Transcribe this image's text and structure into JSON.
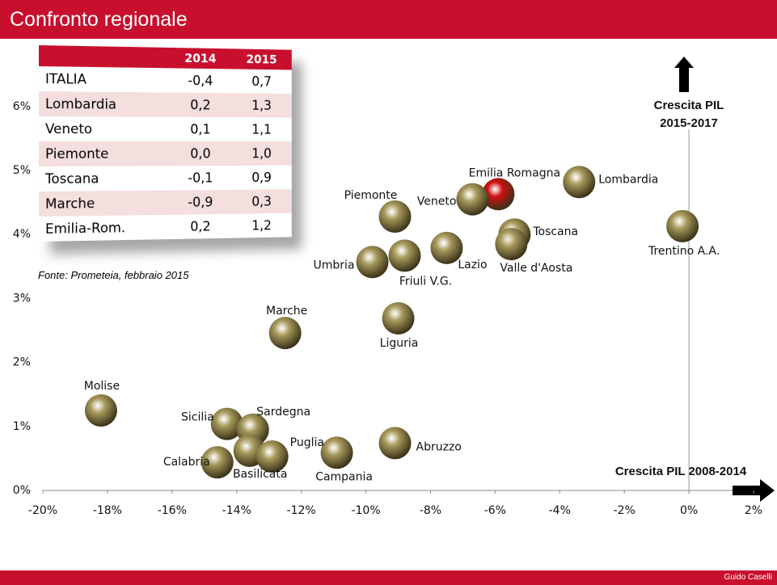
{
  "header": {
    "title": "Confronto regionale"
  },
  "footer": {
    "author": "Guido Caselli"
  },
  "table": {
    "columns": [
      "2014",
      "2015"
    ],
    "rows": [
      [
        "ITALIA",
        "-0,4",
        "0,7"
      ],
      [
        "Lombardia",
        "0,2",
        "1,3"
      ],
      [
        "Veneto",
        "0,1",
        "1,1"
      ],
      [
        "Piemonte",
        "0,0",
        "1,0"
      ],
      [
        "Toscana",
        "-0,1",
        "0,9"
      ],
      [
        "Marche",
        "-0,9",
        "0,3"
      ],
      [
        "Emilia-Rom.",
        "0,2",
        "1,2"
      ]
    ],
    "source": "Fonte: Prometeia, febbraio 2015"
  },
  "chart_data": {
    "type": "scatter",
    "x_axis_label": "Crescita PIL 2008-2014",
    "y_axis_label": [
      "Crescita PIL",
      "2015-2017"
    ],
    "labels": [
      "Lombardia",
      "Emilia Romagna",
      "Veneto",
      "Toscana",
      "Valle d'Aosta",
      "Trentino A.A.",
      "Piemonte",
      "Lazio",
      "Friuli V.G.",
      "Umbria",
      "Marche",
      "Liguria",
      "Molise",
      "Sicilia",
      "Sardegna",
      "Basilicata",
      "Puglia",
      "Calabria",
      "Campania",
      "Abruzzo"
    ],
    "x": [
      -3.4,
      -5.9,
      -6.7,
      -5.4,
      -5.5,
      -0.2,
      -9.1,
      -7.5,
      -8.8,
      -9.8,
      -12.5,
      -9.0,
      -18.2,
      -14.3,
      -13.5,
      -13.6,
      -12.9,
      -14.6,
      -10.9,
      -9.1
    ],
    "y": [
      4.82,
      4.63,
      4.55,
      4.0,
      3.85,
      4.13,
      4.28,
      3.79,
      3.67,
      3.57,
      2.46,
      2.69,
      1.25,
      1.04,
      0.95,
      0.62,
      0.53,
      0.44,
      0.59,
      0.74
    ],
    "colors": [
      "#a89a5c",
      "#d01010",
      "#a89a5c",
      "#a89a5c",
      "#a89a5c",
      "#a89a5c",
      "#a89a5c",
      "#a89a5c",
      "#a89a5c",
      "#a89a5c",
      "#a89a5c",
      "#a89a5c",
      "#a89a5c",
      "#a89a5c",
      "#a89a5c",
      "#a89a5c",
      "#a89a5c",
      "#a89a5c",
      "#a89a5c",
      "#a89a5c"
    ],
    "xlim": [
      -20,
      2
    ],
    "xticks": [
      {
        "value": -20,
        "label": "-20%"
      },
      {
        "value": -18,
        "label": "-18%"
      },
      {
        "value": -16,
        "label": "-16%"
      },
      {
        "value": -14,
        "label": "-14%"
      },
      {
        "value": -12,
        "label": "-12%"
      },
      {
        "value": -10,
        "label": "-10%"
      },
      {
        "value": -8,
        "label": "-8%"
      },
      {
        "value": -6,
        "label": "-6%"
      },
      {
        "value": -4,
        "label": "-4%"
      },
      {
        "value": -2,
        "label": "-2%"
      },
      {
        "value": 0,
        "label": "0%"
      },
      {
        "value": 2,
        "label": "2%"
      }
    ],
    "ylim": [
      0,
      7
    ],
    "yticks": [
      {
        "value": 0,
        "label": "0%"
      },
      {
        "value": 1,
        "label": "1%"
      },
      {
        "value": 2,
        "label": "2%"
      },
      {
        "value": 3,
        "label": "3%"
      },
      {
        "value": 4,
        "label": "4%"
      },
      {
        "value": 5,
        "label": "5%"
      },
      {
        "value": 6,
        "label": "6%"
      }
    ]
  }
}
